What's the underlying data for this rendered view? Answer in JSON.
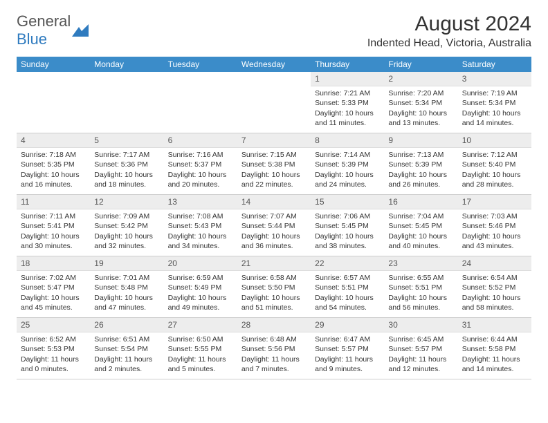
{
  "brand": {
    "word1": "General",
    "word2": "Blue"
  },
  "title": "August 2024",
  "location": "Indented Head, Victoria, Australia",
  "colors": {
    "header_bg": "#3b8cc9",
    "daynum_bg": "#ededed",
    "brand_blue": "#2f7bbf"
  },
  "weekdays": [
    "Sunday",
    "Monday",
    "Tuesday",
    "Wednesday",
    "Thursday",
    "Friday",
    "Saturday"
  ],
  "weeks": [
    [
      {
        "n": "",
        "sr": "",
        "ss": "",
        "dl1": "",
        "dl2": ""
      },
      {
        "n": "",
        "sr": "",
        "ss": "",
        "dl1": "",
        "dl2": ""
      },
      {
        "n": "",
        "sr": "",
        "ss": "",
        "dl1": "",
        "dl2": ""
      },
      {
        "n": "",
        "sr": "",
        "ss": "",
        "dl1": "",
        "dl2": ""
      },
      {
        "n": "1",
        "sr": "Sunrise: 7:21 AM",
        "ss": "Sunset: 5:33 PM",
        "dl1": "Daylight: 10 hours",
        "dl2": "and 11 minutes."
      },
      {
        "n": "2",
        "sr": "Sunrise: 7:20 AM",
        "ss": "Sunset: 5:34 PM",
        "dl1": "Daylight: 10 hours",
        "dl2": "and 13 minutes."
      },
      {
        "n": "3",
        "sr": "Sunrise: 7:19 AM",
        "ss": "Sunset: 5:34 PM",
        "dl1": "Daylight: 10 hours",
        "dl2": "and 14 minutes."
      }
    ],
    [
      {
        "n": "4",
        "sr": "Sunrise: 7:18 AM",
        "ss": "Sunset: 5:35 PM",
        "dl1": "Daylight: 10 hours",
        "dl2": "and 16 minutes."
      },
      {
        "n": "5",
        "sr": "Sunrise: 7:17 AM",
        "ss": "Sunset: 5:36 PM",
        "dl1": "Daylight: 10 hours",
        "dl2": "and 18 minutes."
      },
      {
        "n": "6",
        "sr": "Sunrise: 7:16 AM",
        "ss": "Sunset: 5:37 PM",
        "dl1": "Daylight: 10 hours",
        "dl2": "and 20 minutes."
      },
      {
        "n": "7",
        "sr": "Sunrise: 7:15 AM",
        "ss": "Sunset: 5:38 PM",
        "dl1": "Daylight: 10 hours",
        "dl2": "and 22 minutes."
      },
      {
        "n": "8",
        "sr": "Sunrise: 7:14 AM",
        "ss": "Sunset: 5:39 PM",
        "dl1": "Daylight: 10 hours",
        "dl2": "and 24 minutes."
      },
      {
        "n": "9",
        "sr": "Sunrise: 7:13 AM",
        "ss": "Sunset: 5:39 PM",
        "dl1": "Daylight: 10 hours",
        "dl2": "and 26 minutes."
      },
      {
        "n": "10",
        "sr": "Sunrise: 7:12 AM",
        "ss": "Sunset: 5:40 PM",
        "dl1": "Daylight: 10 hours",
        "dl2": "and 28 minutes."
      }
    ],
    [
      {
        "n": "11",
        "sr": "Sunrise: 7:11 AM",
        "ss": "Sunset: 5:41 PM",
        "dl1": "Daylight: 10 hours",
        "dl2": "and 30 minutes."
      },
      {
        "n": "12",
        "sr": "Sunrise: 7:09 AM",
        "ss": "Sunset: 5:42 PM",
        "dl1": "Daylight: 10 hours",
        "dl2": "and 32 minutes."
      },
      {
        "n": "13",
        "sr": "Sunrise: 7:08 AM",
        "ss": "Sunset: 5:43 PM",
        "dl1": "Daylight: 10 hours",
        "dl2": "and 34 minutes."
      },
      {
        "n": "14",
        "sr": "Sunrise: 7:07 AM",
        "ss": "Sunset: 5:44 PM",
        "dl1": "Daylight: 10 hours",
        "dl2": "and 36 minutes."
      },
      {
        "n": "15",
        "sr": "Sunrise: 7:06 AM",
        "ss": "Sunset: 5:45 PM",
        "dl1": "Daylight: 10 hours",
        "dl2": "and 38 minutes."
      },
      {
        "n": "16",
        "sr": "Sunrise: 7:04 AM",
        "ss": "Sunset: 5:45 PM",
        "dl1": "Daylight: 10 hours",
        "dl2": "and 40 minutes."
      },
      {
        "n": "17",
        "sr": "Sunrise: 7:03 AM",
        "ss": "Sunset: 5:46 PM",
        "dl1": "Daylight: 10 hours",
        "dl2": "and 43 minutes."
      }
    ],
    [
      {
        "n": "18",
        "sr": "Sunrise: 7:02 AM",
        "ss": "Sunset: 5:47 PM",
        "dl1": "Daylight: 10 hours",
        "dl2": "and 45 minutes."
      },
      {
        "n": "19",
        "sr": "Sunrise: 7:01 AM",
        "ss": "Sunset: 5:48 PM",
        "dl1": "Daylight: 10 hours",
        "dl2": "and 47 minutes."
      },
      {
        "n": "20",
        "sr": "Sunrise: 6:59 AM",
        "ss": "Sunset: 5:49 PM",
        "dl1": "Daylight: 10 hours",
        "dl2": "and 49 minutes."
      },
      {
        "n": "21",
        "sr": "Sunrise: 6:58 AM",
        "ss": "Sunset: 5:50 PM",
        "dl1": "Daylight: 10 hours",
        "dl2": "and 51 minutes."
      },
      {
        "n": "22",
        "sr": "Sunrise: 6:57 AM",
        "ss": "Sunset: 5:51 PM",
        "dl1": "Daylight: 10 hours",
        "dl2": "and 54 minutes."
      },
      {
        "n": "23",
        "sr": "Sunrise: 6:55 AM",
        "ss": "Sunset: 5:51 PM",
        "dl1": "Daylight: 10 hours",
        "dl2": "and 56 minutes."
      },
      {
        "n": "24",
        "sr": "Sunrise: 6:54 AM",
        "ss": "Sunset: 5:52 PM",
        "dl1": "Daylight: 10 hours",
        "dl2": "and 58 minutes."
      }
    ],
    [
      {
        "n": "25",
        "sr": "Sunrise: 6:52 AM",
        "ss": "Sunset: 5:53 PM",
        "dl1": "Daylight: 11 hours",
        "dl2": "and 0 minutes."
      },
      {
        "n": "26",
        "sr": "Sunrise: 6:51 AM",
        "ss": "Sunset: 5:54 PM",
        "dl1": "Daylight: 11 hours",
        "dl2": "and 2 minutes."
      },
      {
        "n": "27",
        "sr": "Sunrise: 6:50 AM",
        "ss": "Sunset: 5:55 PM",
        "dl1": "Daylight: 11 hours",
        "dl2": "and 5 minutes."
      },
      {
        "n": "28",
        "sr": "Sunrise: 6:48 AM",
        "ss": "Sunset: 5:56 PM",
        "dl1": "Daylight: 11 hours",
        "dl2": "and 7 minutes."
      },
      {
        "n": "29",
        "sr": "Sunrise: 6:47 AM",
        "ss": "Sunset: 5:57 PM",
        "dl1": "Daylight: 11 hours",
        "dl2": "and 9 minutes."
      },
      {
        "n": "30",
        "sr": "Sunrise: 6:45 AM",
        "ss": "Sunset: 5:57 PM",
        "dl1": "Daylight: 11 hours",
        "dl2": "and 12 minutes."
      },
      {
        "n": "31",
        "sr": "Sunrise: 6:44 AM",
        "ss": "Sunset: 5:58 PM",
        "dl1": "Daylight: 11 hours",
        "dl2": "and 14 minutes."
      }
    ]
  ]
}
